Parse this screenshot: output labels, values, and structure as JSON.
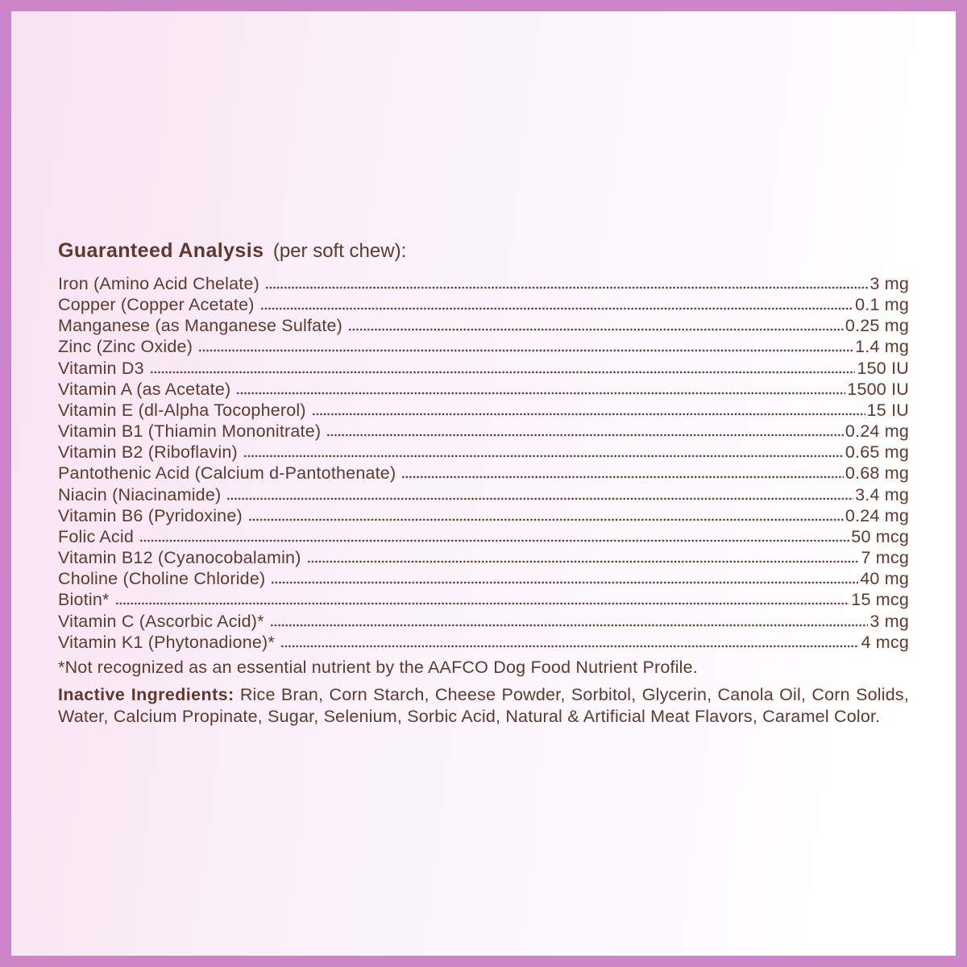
{
  "label": {
    "title": "Guaranteed Analysis",
    "title_suffix": "(per soft chew):",
    "rows": [
      {
        "name": "Iron (Amino Acid Chelate)",
        "value": "3 mg"
      },
      {
        "name": "Copper (Copper Acetate)",
        "value": "0.1 mg"
      },
      {
        "name": "Manganese (as Manganese Sulfate)",
        "value": "0.25 mg"
      },
      {
        "name": "Zinc (Zinc Oxide)",
        "value": "1.4 mg"
      },
      {
        "name": "Vitamin D3",
        "value": "150 IU"
      },
      {
        "name": "Vitamin A (as Acetate)",
        "value": "1500 IU"
      },
      {
        "name": "Vitamin E (dl-Alpha Tocopherol)",
        "value": "15 IU"
      },
      {
        "name": "Vitamin B1 (Thiamin Mononitrate)",
        "value": "0.24 mg"
      },
      {
        "name": "Vitamin B2 (Riboflavin)",
        "value": "0.65 mg"
      },
      {
        "name": "Pantothenic Acid (Calcium d-Pantothenate)",
        "value": "0.68 mg"
      },
      {
        "name": "Niacin (Niacinamide)",
        "value": "3.4 mg"
      },
      {
        "name": "Vitamin B6 (Pyridoxine)",
        "value": "0.24 mg"
      },
      {
        "name": "Folic Acid",
        "value": "50 mcg"
      },
      {
        "name": "Vitamin B12 (Cyanocobalamin)",
        "value": "7 mcg"
      },
      {
        "name": "Choline (Choline Chloride)",
        "value": "40 mg"
      },
      {
        "name": "Biotin*",
        "value": "15 mcg"
      },
      {
        "name": "Vitamin C (Ascorbic Acid)*",
        "value": "3 mg"
      },
      {
        "name": "Vitamin K1 (Phytonadione)*",
        "value": "4 mcg"
      }
    ],
    "footnote": "*Not recognized as an essential nutrient by the AAFCO Dog Food Nutrient Profile.",
    "inactive_heading": "Inactive Ingredients:",
    "inactive_line1": "Rice Bran, Corn Starch, Cheese Powder, Sorbitol, Glycerin, Canola Oil, Corn Solids,",
    "inactive_line2": "Water, Calcium Propinate, Sugar, Selenium, Sorbic Acid, Natural & Artificial Meat Flavors, Caramel Color."
  },
  "colors": {
    "border": "#cc85c6",
    "text": "#5d392e",
    "bg_left": "#f7e3f2",
    "bg_right": "#fefeff"
  }
}
